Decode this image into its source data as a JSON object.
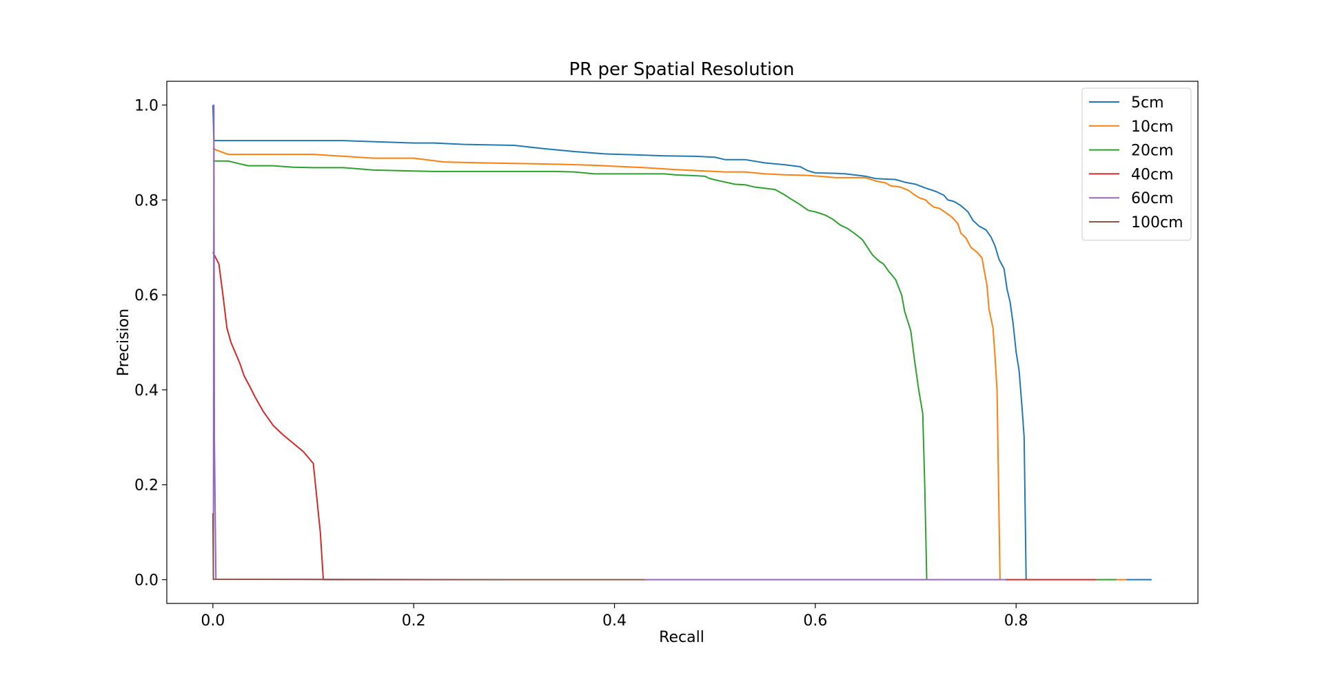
{
  "chart_data": {
    "type": "line",
    "title": "PR per Spatial Resolution",
    "xlabel": "Recall",
    "ylabel": "Precision",
    "xlim": [
      -0.0459,
      0.9811
    ],
    "ylim": [
      -0.05,
      1.05
    ],
    "xticks": [
      0.0,
      0.2,
      0.4,
      0.6,
      0.8
    ],
    "xtick_labels": [
      "0.0",
      "0.2",
      "0.4",
      "0.6",
      "0.8"
    ],
    "yticks": [
      0.0,
      0.2,
      0.4,
      0.6,
      0.8,
      1.0
    ],
    "ytick_labels": [
      "0.0",
      "0.2",
      "0.4",
      "0.6",
      "0.8",
      "1.0"
    ],
    "grid": false,
    "legend_position": "top-right",
    "series": [
      {
        "name": "5cm",
        "color": "#1f77b4",
        "points": [
          [
            0.0,
            1.0
          ],
          [
            0.001,
            0.925
          ],
          [
            0.05,
            0.925
          ],
          [
            0.13,
            0.925
          ],
          [
            0.2,
            0.92
          ],
          [
            0.22,
            0.92
          ],
          [
            0.25,
            0.917
          ],
          [
            0.3,
            0.915
          ],
          [
            0.33,
            0.908
          ],
          [
            0.36,
            0.902
          ],
          [
            0.39,
            0.897
          ],
          [
            0.42,
            0.895
          ],
          [
            0.45,
            0.893
          ],
          [
            0.48,
            0.892
          ],
          [
            0.5,
            0.89
          ],
          [
            0.51,
            0.885
          ],
          [
            0.53,
            0.885
          ],
          [
            0.55,
            0.878
          ],
          [
            0.57,
            0.874
          ],
          [
            0.585,
            0.87
          ],
          [
            0.592,
            0.862
          ],
          [
            0.6,
            0.857
          ],
          [
            0.62,
            0.856
          ],
          [
            0.63,
            0.855
          ],
          [
            0.65,
            0.85
          ],
          [
            0.66,
            0.845
          ],
          [
            0.68,
            0.843
          ],
          [
            0.69,
            0.837
          ],
          [
            0.7,
            0.833
          ],
          [
            0.71,
            0.825
          ],
          [
            0.72,
            0.818
          ],
          [
            0.728,
            0.81
          ],
          [
            0.732,
            0.8
          ],
          [
            0.738,
            0.797
          ],
          [
            0.745,
            0.788
          ],
          [
            0.752,
            0.775
          ],
          [
            0.757,
            0.757
          ],
          [
            0.763,
            0.745
          ],
          [
            0.77,
            0.737
          ],
          [
            0.775,
            0.722
          ],
          [
            0.779,
            0.703
          ],
          [
            0.783,
            0.675
          ],
          [
            0.788,
            0.655
          ],
          [
            0.791,
            0.612
          ],
          [
            0.794,
            0.585
          ],
          [
            0.797,
            0.54
          ],
          [
            0.8,
            0.48
          ],
          [
            0.803,
            0.44
          ],
          [
            0.806,
            0.36
          ],
          [
            0.808,
            0.3
          ],
          [
            0.81,
            0.0
          ],
          [
            0.87,
            0.0
          ],
          [
            0.935,
            0.0
          ]
        ]
      },
      {
        "name": "10cm",
        "color": "#ff7f0e",
        "points": [
          [
            0.0,
            0.908
          ],
          [
            0.015,
            0.896
          ],
          [
            0.05,
            0.896
          ],
          [
            0.1,
            0.896
          ],
          [
            0.13,
            0.892
          ],
          [
            0.16,
            0.888
          ],
          [
            0.2,
            0.888
          ],
          [
            0.23,
            0.88
          ],
          [
            0.27,
            0.878
          ],
          [
            0.3,
            0.877
          ],
          [
            0.35,
            0.875
          ],
          [
            0.38,
            0.873
          ],
          [
            0.4,
            0.871
          ],
          [
            0.43,
            0.868
          ],
          [
            0.46,
            0.864
          ],
          [
            0.49,
            0.861
          ],
          [
            0.51,
            0.859
          ],
          [
            0.53,
            0.859
          ],
          [
            0.55,
            0.855
          ],
          [
            0.57,
            0.853
          ],
          [
            0.59,
            0.852
          ],
          [
            0.61,
            0.849
          ],
          [
            0.62,
            0.847
          ],
          [
            0.64,
            0.847
          ],
          [
            0.65,
            0.847
          ],
          [
            0.66,
            0.84
          ],
          [
            0.67,
            0.836
          ],
          [
            0.675,
            0.83
          ],
          [
            0.685,
            0.827
          ],
          [
            0.693,
            0.82
          ],
          [
            0.698,
            0.812
          ],
          [
            0.703,
            0.805
          ],
          [
            0.71,
            0.8
          ],
          [
            0.713,
            0.793
          ],
          [
            0.718,
            0.785
          ],
          [
            0.724,
            0.782
          ],
          [
            0.732,
            0.77
          ],
          [
            0.736,
            0.764
          ],
          [
            0.742,
            0.75
          ],
          [
            0.745,
            0.73
          ],
          [
            0.75,
            0.72
          ],
          [
            0.755,
            0.7
          ],
          [
            0.761,
            0.69
          ],
          [
            0.766,
            0.678
          ],
          [
            0.771,
            0.62
          ],
          [
            0.773,
            0.57
          ],
          [
            0.777,
            0.53
          ],
          [
            0.779,
            0.47
          ],
          [
            0.781,
            0.4
          ],
          [
            0.784,
            0.0
          ],
          [
            0.86,
            0.0
          ],
          [
            0.91,
            0.0
          ]
        ]
      },
      {
        "name": "20cm",
        "color": "#2ca02c",
        "points": [
          [
            0.0,
            0.882
          ],
          [
            0.015,
            0.882
          ],
          [
            0.025,
            0.877
          ],
          [
            0.035,
            0.872
          ],
          [
            0.06,
            0.872
          ],
          [
            0.08,
            0.869
          ],
          [
            0.1,
            0.868
          ],
          [
            0.13,
            0.868
          ],
          [
            0.16,
            0.863
          ],
          [
            0.2,
            0.861
          ],
          [
            0.22,
            0.86
          ],
          [
            0.3,
            0.86
          ],
          [
            0.34,
            0.86
          ],
          [
            0.36,
            0.859
          ],
          [
            0.38,
            0.855
          ],
          [
            0.45,
            0.855
          ],
          [
            0.46,
            0.853
          ],
          [
            0.49,
            0.85
          ],
          [
            0.495,
            0.845
          ],
          [
            0.505,
            0.84
          ],
          [
            0.52,
            0.833
          ],
          [
            0.53,
            0.832
          ],
          [
            0.54,
            0.827
          ],
          [
            0.56,
            0.822
          ],
          [
            0.57,
            0.81
          ],
          [
            0.575,
            0.803
          ],
          [
            0.585,
            0.79
          ],
          [
            0.593,
            0.778
          ],
          [
            0.6,
            0.775
          ],
          [
            0.61,
            0.768
          ],
          [
            0.617,
            0.76
          ],
          [
            0.625,
            0.747
          ],
          [
            0.632,
            0.74
          ],
          [
            0.64,
            0.728
          ],
          [
            0.647,
            0.716
          ],
          [
            0.652,
            0.7
          ],
          [
            0.657,
            0.684
          ],
          [
            0.663,
            0.672
          ],
          [
            0.668,
            0.665
          ],
          [
            0.673,
            0.65
          ],
          [
            0.68,
            0.632
          ],
          [
            0.686,
            0.6
          ],
          [
            0.689,
            0.565
          ],
          [
            0.695,
            0.525
          ],
          [
            0.699,
            0.46
          ],
          [
            0.703,
            0.4
          ],
          [
            0.707,
            0.35
          ],
          [
            0.709,
            0.2
          ],
          [
            0.711,
            0.0
          ],
          [
            0.8,
            0.0
          ],
          [
            0.9,
            0.0
          ]
        ]
      },
      {
        "name": "40cm",
        "color": "#d62728",
        "points": [
          [
            0.0,
            0.69
          ],
          [
            0.006,
            0.665
          ],
          [
            0.01,
            0.6
          ],
          [
            0.014,
            0.53
          ],
          [
            0.018,
            0.5
          ],
          [
            0.024,
            0.47
          ],
          [
            0.027,
            0.455
          ],
          [
            0.031,
            0.43
          ],
          [
            0.036,
            0.41
          ],
          [
            0.042,
            0.385
          ],
          [
            0.05,
            0.355
          ],
          [
            0.06,
            0.325
          ],
          [
            0.07,
            0.305
          ],
          [
            0.09,
            0.27
          ],
          [
            0.1,
            0.245
          ],
          [
            0.107,
            0.1
          ],
          [
            0.11,
            0.0
          ],
          [
            0.3,
            0.0
          ],
          [
            0.6,
            0.0
          ],
          [
            0.88,
            0.0
          ]
        ]
      },
      {
        "name": "60cm",
        "color": "#9467bd",
        "points": [
          [
            0.0,
            0.0
          ],
          [
            0.0005,
            0.0
          ],
          [
            0.001,
            1.0
          ],
          [
            0.0015,
            0.3
          ],
          [
            0.003,
            0.001
          ],
          [
            0.3,
            0.0
          ],
          [
            0.6,
            0.0
          ],
          [
            0.79,
            0.0
          ]
        ]
      },
      {
        "name": "100cm",
        "color": "#8c564b",
        "points": [
          [
            0.0,
            0.14
          ],
          [
            0.0005,
            0.001
          ],
          [
            0.2,
            0.0
          ],
          [
            0.43,
            0.0
          ]
        ]
      }
    ]
  }
}
